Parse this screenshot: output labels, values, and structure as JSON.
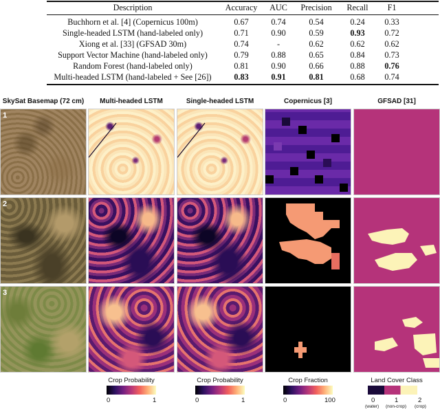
{
  "table": {
    "headers": [
      "Description",
      "Accuracy",
      "AUC",
      "Precision",
      "Recall",
      "F1"
    ],
    "rows": [
      {
        "desc": "Buchhorn et al. [4] (Copernicus 100m)",
        "acc": "0.67",
        "auc": "0.74",
        "pre": "0.54",
        "rec": "0.24",
        "f1": "0.33"
      },
      {
        "desc": "Single-headed LSTM (hand-labeled only)",
        "acc": "0.71",
        "auc": "0.90",
        "pre": "0.59",
        "rec": "0.93",
        "f1": "0.72"
      },
      {
        "desc": "Xiong et al. [33] (GFSAD 30m)",
        "acc": "0.74",
        "auc": "-",
        "pre": "0.62",
        "rec": "0.62",
        "f1": "0.62"
      },
      {
        "desc": "Support Vector Machine (hand-labeled only)",
        "acc": "0.79",
        "auc": "0.88",
        "pre": "0.65",
        "rec": "0.84",
        "f1": "0.73"
      },
      {
        "desc": "Random Forest (hand-labeled only)",
        "acc": "0.81",
        "auc": "0.90",
        "pre": "0.66",
        "rec": "0.88",
        "f1": "0.76"
      },
      {
        "desc": "Multi-headed LSTM (hand-labeled + See [26])",
        "acc": "0.83",
        "auc": "0.91",
        "pre": "0.81",
        "rec": "0.68",
        "f1": "0.74"
      }
    ]
  },
  "figure": {
    "columns": [
      "SkySat Basemap (72 cm)",
      "Multi-headed LSTM",
      "Single-headed LSTM",
      "Copernicus [3]",
      "GFSAD [31]"
    ],
    "row_labels": [
      "1",
      "2",
      "3"
    ],
    "colorbars": [
      {
        "title": "Crop Probability",
        "min": "0",
        "max": "1"
      },
      {
        "title": "Crop Probability",
        "min": "0",
        "max": "1"
      },
      {
        "title": "Crop Fraction",
        "min": "0",
        "max": "100"
      },
      {
        "title": "Land Cover Class",
        "ticks": [
          "0",
          "1",
          "2"
        ],
        "sub": [
          "(water)",
          "(non-crop)",
          "(crop)"
        ]
      }
    ]
  },
  "colors": {
    "gfsad_crop": "#b5337a",
    "gfsad_noncrop": "#fcf3b8",
    "copernicus_zero": "#000000"
  }
}
